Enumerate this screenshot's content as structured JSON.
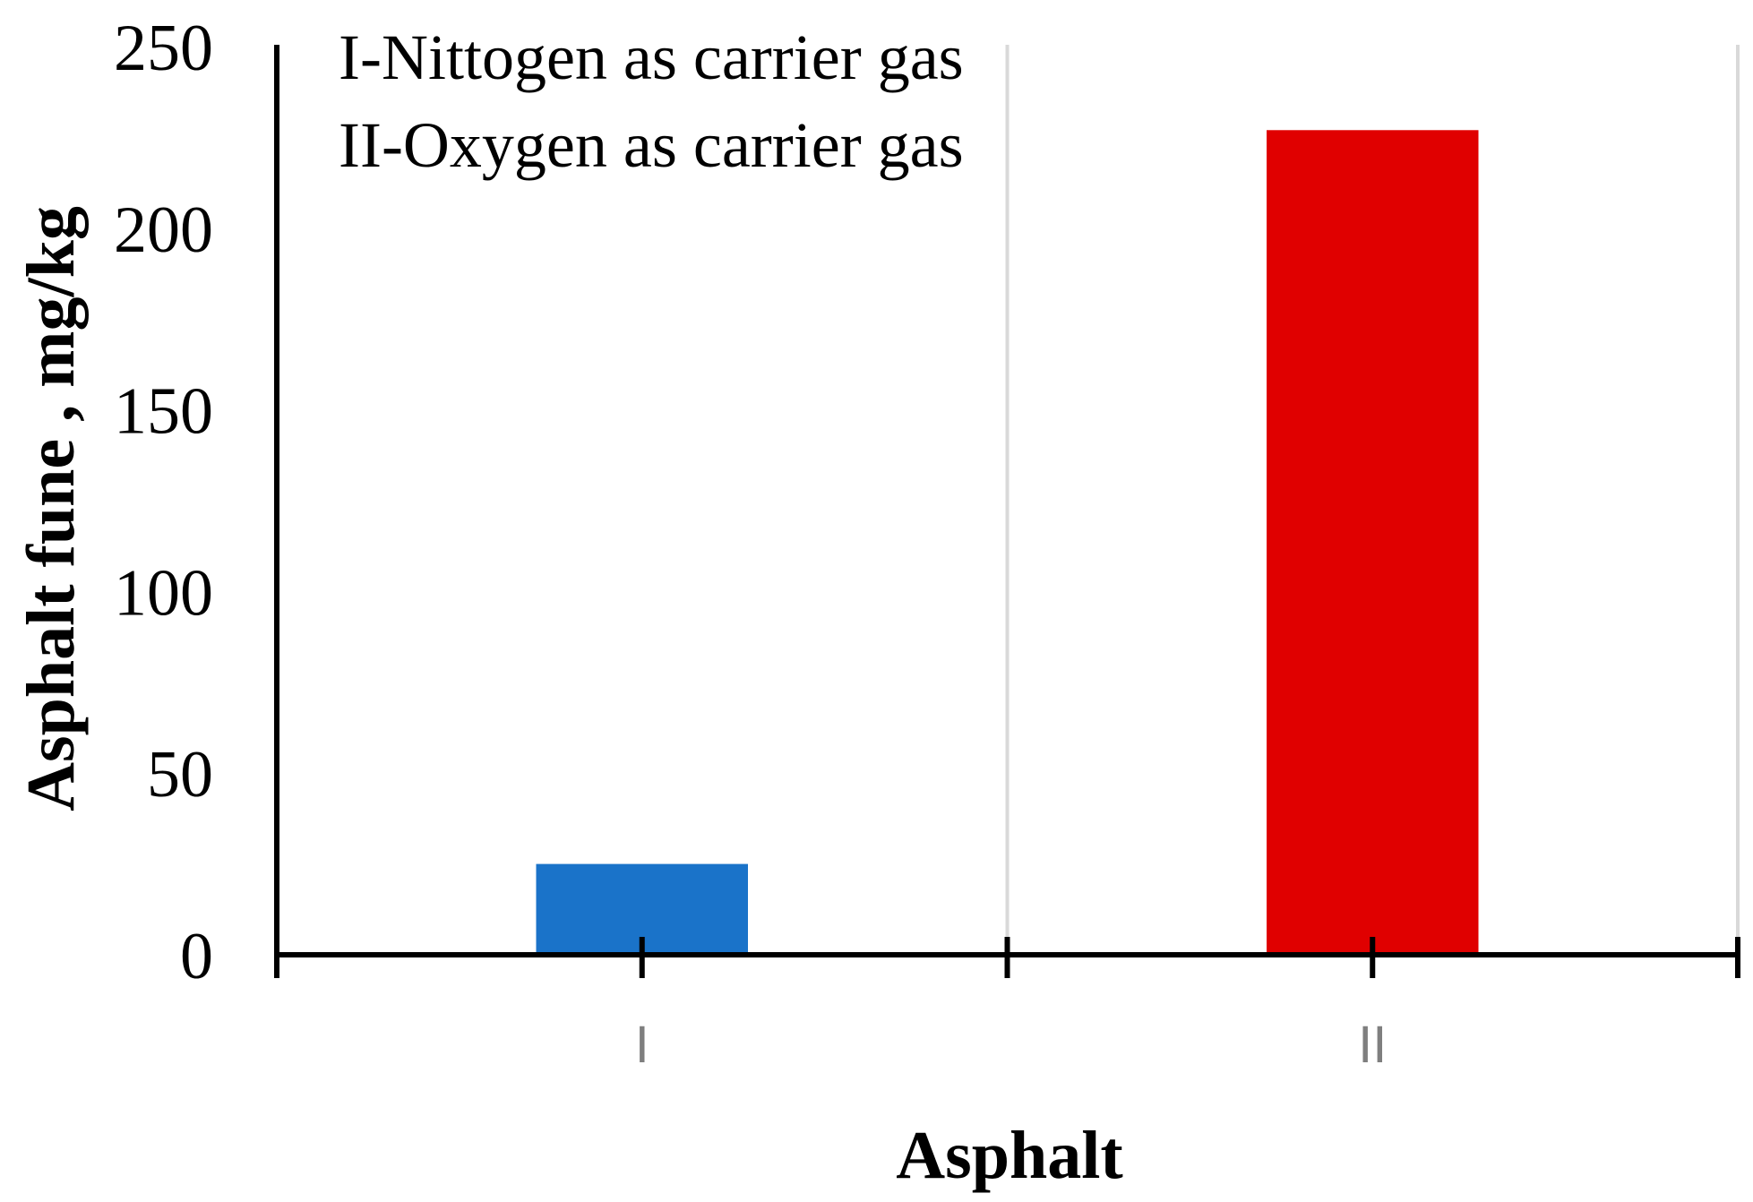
{
  "chart_data": {
    "type": "bar",
    "categories": [
      "I",
      "II"
    ],
    "values": [
      25,
      227
    ],
    "colors": [
      "#1a73c9",
      "#e00000"
    ],
    "xlabel": "Asphalt",
    "ylabel": "Asphalt fune , mg/kg",
    "ylim": [
      0,
      250
    ],
    "yticks": [
      0,
      50,
      100,
      150,
      200,
      250
    ],
    "annotations": [
      "I-Nittogen as carrier gas",
      "II-Oxygen as carrier gas"
    ],
    "grid": "vertical category separators"
  }
}
